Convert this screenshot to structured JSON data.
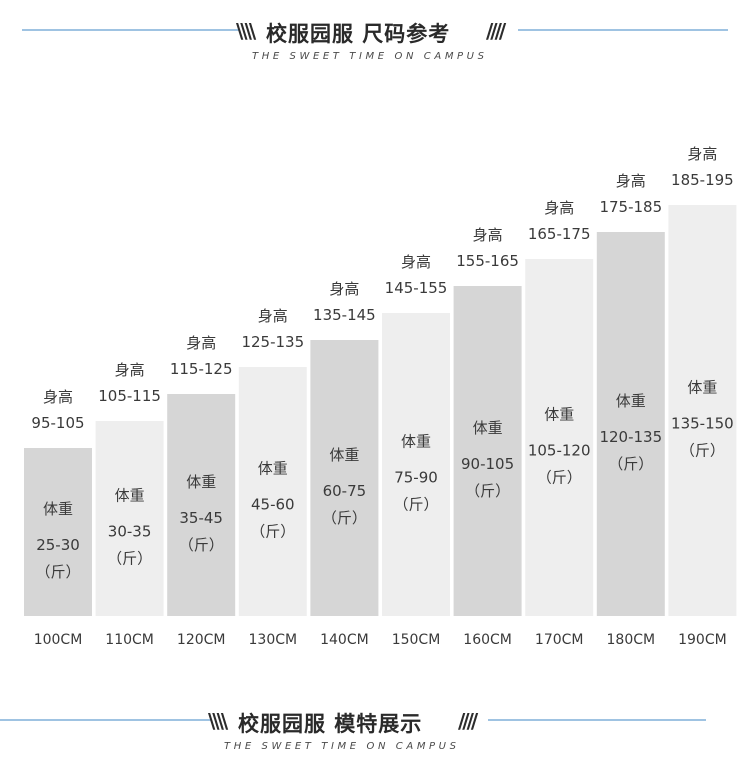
{
  "header_top": {
    "title": "校服园服  尺码参考",
    "subtitle": "THE SWEET TIME ON CAMPUS"
  },
  "header_bottom": {
    "title": "校服园服  模特展示",
    "subtitle": "THE SWEET TIME ON CAMPUS"
  },
  "slash_left": "\\\\\\\\",
  "slash_right": "////",
  "colors": {
    "dark_bar": "#d6d6d6",
    "light_bar": "#eeeeee",
    "text": "#3a3a3a",
    "rule": "#9fc3e2"
  },
  "chart_data": {
    "type": "bar",
    "height_label": "身高",
    "weight_label": "体重",
    "unit_label": "（斤）",
    "categories": [
      "100CM",
      "110CM",
      "120CM",
      "130CM",
      "140CM",
      "150CM",
      "160CM",
      "170CM",
      "180CM",
      "190CM"
    ],
    "height_ranges": [
      "95-105",
      "105-115",
      "115-125",
      "125-135",
      "135-145",
      "145-155",
      "155-165",
      "165-175",
      "175-185",
      "185-195"
    ],
    "weight_ranges": [
      "25-30",
      "30-35",
      "35-45",
      "45-60",
      "60-75",
      "75-90",
      "90-105",
      "105-120",
      "120-135",
      "135-150"
    ],
    "shade": [
      "dark",
      "light",
      "dark",
      "light",
      "dark",
      "light",
      "dark",
      "light",
      "dark",
      "light"
    ]
  }
}
